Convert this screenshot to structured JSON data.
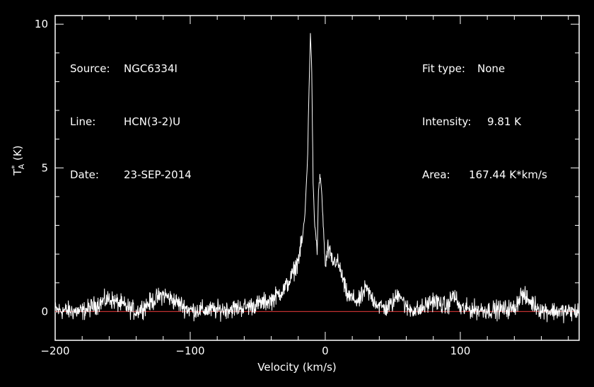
{
  "header_left": [
    {
      "label": "Source:",
      "value": "NGC6334I"
    },
    {
      "label": "Line:",
      "value": "HCN(3-2)U"
    },
    {
      "label": "Date:",
      "value": "23-SEP-2014"
    }
  ],
  "header_right": [
    {
      "label": "Fit type:",
      "value": "None"
    },
    {
      "label": "Intensity:",
      "value": "9.81 K"
    },
    {
      "label": "Area:",
      "value": "167.44 K*km/s"
    }
  ],
  "chart_data": {
    "type": "line",
    "xlabel": "Velocity (km/s)",
    "ylabel_main": "T",
    "ylabel_sup": "*",
    "ylabel_sub": "A",
    "ylabel_unit": "(K)",
    "xlim": [
      -200,
      188
    ],
    "ylim": [
      -1,
      10.3
    ],
    "xticks": [
      -200,
      -100,
      0,
      100
    ],
    "xtick_labels": [
      "−200",
      "−100",
      "0",
      "100"
    ],
    "yticks": [
      0,
      5,
      10
    ],
    "ytick_labels": [
      "0",
      "5",
      "10"
    ],
    "baseline": {
      "y": 0,
      "color": "#c03030"
    },
    "line_color": "#ffffff",
    "features": [
      {
        "x": -165,
        "y": 0.45
      },
      {
        "x": -118,
        "y": 0.6
      },
      {
        "x": 32,
        "y": 0.8
      },
      {
        "x": 54,
        "y": 0.7
      },
      {
        "x": 80,
        "y": 0.4
      },
      {
        "x": 93,
        "y": 0.6
      },
      {
        "x": 143,
        "y": 0.6
      }
    ],
    "series": [
      {
        "x": [
          -200,
          -180,
          -160,
          -140,
          -120,
          -100,
          -80,
          -60,
          -50,
          -40,
          -30,
          -25,
          -20,
          -17,
          -15,
          -13,
          -12,
          -11,
          -10,
          -9,
          -8,
          -7,
          -6,
          -5,
          -4,
          -3,
          -2,
          -1,
          0,
          2,
          4,
          6,
          8,
          10,
          12,
          14,
          16,
          18,
          20,
          25,
          30,
          35,
          40,
          45,
          50,
          55,
          60,
          70,
          80,
          90,
          95,
          100,
          120,
          140,
          145,
          160,
          175,
          188
        ],
        "y": [
          0.05,
          0.0,
          0.45,
          0.0,
          0.6,
          0.05,
          0.05,
          0.15,
          0.25,
          0.4,
          0.8,
          1.2,
          1.8,
          2.5,
          3.4,
          5.5,
          7.8,
          9.7,
          8.4,
          4.5,
          3.1,
          2.7,
          2.0,
          4.2,
          4.7,
          4.4,
          3.5,
          2.6,
          1.5,
          2.2,
          1.9,
          1.7,
          1.8,
          1.6,
          1.3,
          0.9,
          0.6,
          0.5,
          0.45,
          0.35,
          0.8,
          0.45,
          0.2,
          0.1,
          0.3,
          0.7,
          0.1,
          0.05,
          0.4,
          0.15,
          0.6,
          0.1,
          0.05,
          0.1,
          0.6,
          0.05,
          0.0,
          0.0
        ]
      }
    ]
  }
}
